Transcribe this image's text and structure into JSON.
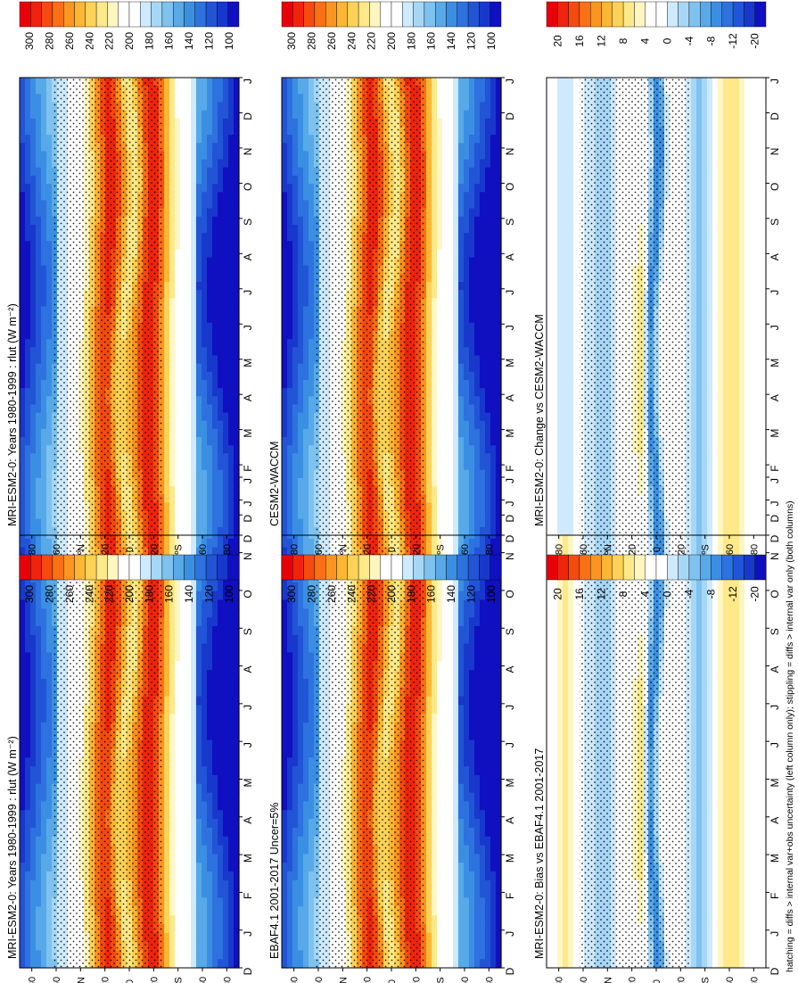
{
  "footer": "hatching = diffs > internal var+obs uncertainty (left column only); stippling = diffs > internal var only (both columns)",
  "month_labels": [
    "D",
    "J",
    "F",
    "M",
    "A",
    "M",
    "J",
    "J",
    "A",
    "S",
    "O",
    "N",
    "D",
    "J"
  ],
  "lat_labels": [
    "80",
    "60",
    "ºN",
    "20",
    "0",
    "20",
    "ºS",
    "60",
    "80"
  ],
  "colorbars": {
    "absolute": {
      "labels": [
        "300",
        "280",
        "260",
        "240",
        "220",
        "200",
        "180",
        "160",
        "140",
        "120",
        "100"
      ],
      "colors": [
        "#e8000b",
        "#f0240d",
        "#f54a10",
        "#f97015",
        "#fb9520",
        "#fdb634",
        "#fdd257",
        "#fde98a",
        "#fff6c2",
        "#ffffff",
        "#ffffff",
        "#cfeaff",
        "#a7d7f7",
        "#7fc2ef",
        "#58a9e8",
        "#3b8fe3",
        "#2d72de",
        "#2255d6",
        "#1838cc",
        "#1010c0"
      ]
    },
    "difference": {
      "labels": [
        "20",
        "16",
        "12",
        "8",
        "4",
        "0",
        "-4",
        "-8",
        "-12",
        "-20"
      ],
      "colors": [
        "#e8000b",
        "#f0240d",
        "#f54a10",
        "#f97015",
        "#fb9520",
        "#fdb634",
        "#fdd257",
        "#fde98a",
        "#fff6c2",
        "#ffffff",
        "#ffffff",
        "#cfeaff",
        "#a7d7f7",
        "#7fc2ef",
        "#58a9e8",
        "#3b8fe3",
        "#2d72de",
        "#2255d6",
        "#1838cc",
        "#1010c0"
      ]
    }
  },
  "panels": [
    {
      "id": "tl",
      "title": "MRI-ESM2-0: Years 1980-1999 : rlut (W m⁻²)",
      "kind": "abs",
      "hatched": true
    },
    {
      "id": "ml",
      "title": "EBAF4.1 2001-2017 Uncer=5%",
      "kind": "abs",
      "hatched": true
    },
    {
      "id": "bl",
      "title": "MRI-ESM2-0: Bias vs EBAF4.1 2001-2017",
      "kind": "diff",
      "hatched": true
    },
    {
      "id": "tr",
      "title": "MRI-ESM2-0: Years 1980-1999 : rlut (W m⁻²)",
      "kind": "abs",
      "hatched": false
    },
    {
      "id": "mr",
      "title": "CESM2-WACCM",
      "kind": "abs",
      "hatched": false
    },
    {
      "id": "br",
      "title": "MRI-ESM2-0: Change vs CESM2-WACCM",
      "kind": "diff",
      "hatched": false
    }
  ],
  "chart_data": [
    {
      "type": "heatmap",
      "title": "MRI-ESM2-0: Years 1980-1999 : rlut (W m⁻²)",
      "x": "month (D-J)",
      "y": "latitude 90S-90N",
      "zlim": [
        100,
        310
      ],
      "z_summary": {
        "tropics_max": 300,
        "subtropics": 270,
        "polar_min": 130
      }
    },
    {
      "type": "heatmap",
      "title": "EBAF4.1 2001-2017 Uncer=5%",
      "zlim": [
        100,
        310
      ],
      "z_summary": {
        "tropics_max": 300,
        "subtropics": 270,
        "polar_min": 140
      }
    },
    {
      "type": "heatmap",
      "title": "MRI-ESM2-0: Bias vs EBAF4.1 2001-2017",
      "zlim": [
        -20,
        20
      ],
      "z_summary": {
        "equator": -12,
        "midlat": -6,
        "subtropics": 4
      }
    },
    {
      "type": "heatmap",
      "title": "MRI-ESM2-0: Years 1980-1999 : rlut (W m⁻²)",
      "zlim": [
        100,
        310
      ],
      "z_summary": {
        "tropics_max": 300,
        "subtropics": 270,
        "polar_min": 130
      }
    },
    {
      "type": "heatmap",
      "title": "CESM2-WACCM",
      "zlim": [
        100,
        310
      ],
      "z_summary": {
        "tropics_max": 300,
        "subtropics": 270,
        "polar_min": 140
      }
    },
    {
      "type": "heatmap",
      "title": "MRI-ESM2-0: Change vs CESM2-WACCM",
      "zlim": [
        -20,
        20
      ],
      "z_summary": {
        "equator": -10,
        "midlat": -6,
        "subtropics": 6
      }
    }
  ]
}
